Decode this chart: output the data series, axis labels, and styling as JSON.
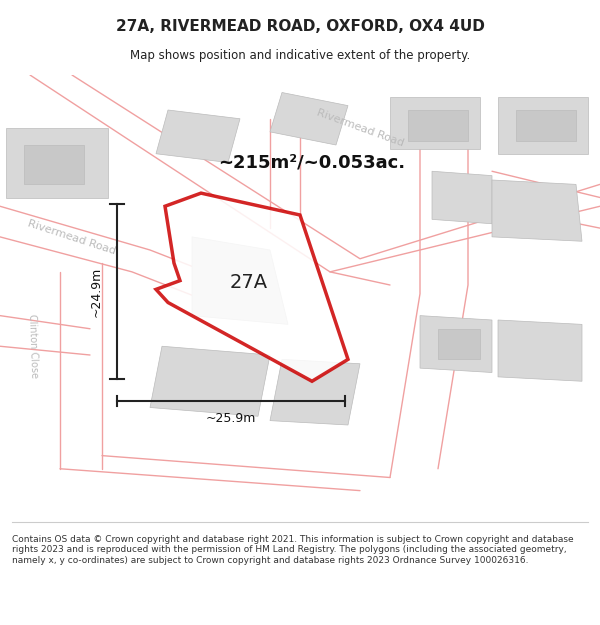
{
  "title": "27A, RIVERMEAD ROAD, OXFORD, OX4 4UD",
  "subtitle": "Map shows position and indicative extent of the property.",
  "area_label": "~215m²/~0.053ac.",
  "plot_label": "27A",
  "dim_height": "~24.9m",
  "dim_width": "~25.9m",
  "street_label_1": "Rivermead Road",
  "street_label_2": "Rivermead Road",
  "street_label_3": "Clinton Close",
  "footer_text": "Contains OS data © Crown copyright and database right 2021. This information is subject to Crown copyright and database rights 2023 and is reproduced with the permission of HM Land Registry. The polygons (including the associated geometry, namely x, y co-ordinates) are subject to Crown copyright and database rights 2023 Ordnance Survey 100026316.",
  "bg_color": "#f5f5f5",
  "map_bg": "#f8f8f8",
  "building_color": "#d8d8d8",
  "road_line_color": "#f0a0a0",
  "plot_line_color": "#cc0000",
  "plot_fill_color": "#ffffff",
  "street_text_color": "#c0c0c0",
  "dim_color": "#222222",
  "title_color": "#222222",
  "footer_color": "#333333"
}
